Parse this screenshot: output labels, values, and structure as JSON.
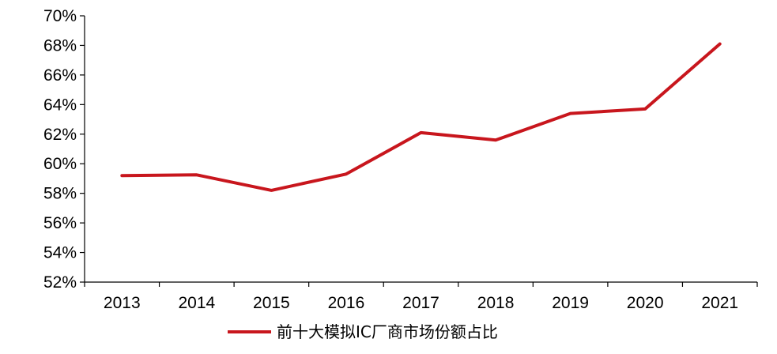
{
  "chart_data": {
    "type": "line",
    "title": "",
    "xlabel": "",
    "ylabel": "",
    "categories": [
      "2013",
      "2014",
      "2015",
      "2016",
      "2017",
      "2018",
      "2019",
      "2020",
      "2021"
    ],
    "series": [
      {
        "name": "前十大模拟IC厂商市场份额占比",
        "color": "#c8161d",
        "values": [
          0.592,
          0.5925,
          0.582,
          0.593,
          0.621,
          0.616,
          0.634,
          0.637,
          0.681
        ]
      }
    ],
    "ylim": [
      0.52,
      0.7
    ],
    "yticks": [
      "52%",
      "54%",
      "56%",
      "58%",
      "60%",
      "62%",
      "64%",
      "66%",
      "68%",
      "70%"
    ],
    "ytick_values": [
      0.52,
      0.54,
      0.56,
      0.58,
      0.6,
      0.62,
      0.64,
      0.66,
      0.68,
      0.7
    ],
    "grid": false,
    "legend_position": "bottom"
  }
}
